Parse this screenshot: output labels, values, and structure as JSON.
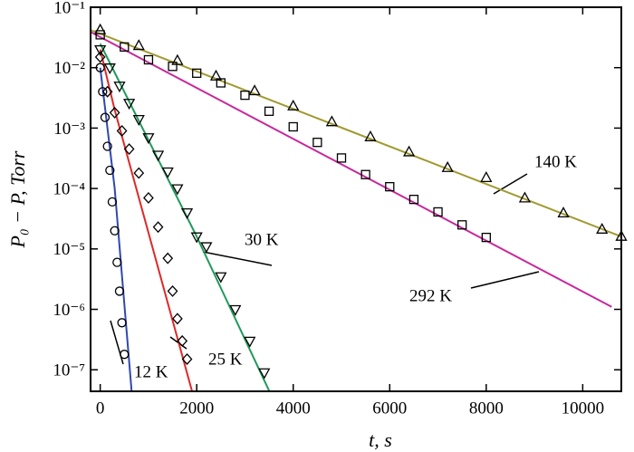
{
  "chart_data": {
    "type": "scatter",
    "xlabel": "t, s",
    "ylabel": "P₀ − P, Torr",
    "xlim": [
      -200,
      10800
    ],
    "xticks": [
      0,
      2000,
      4000,
      6000,
      8000,
      10000
    ],
    "ylim": [
      4.4e-08,
      0.1
    ],
    "log_y": true,
    "yticks": [
      {
        "value": 0.1,
        "label": "10⁻¹"
      },
      {
        "value": 0.01,
        "label": "10⁻²"
      },
      {
        "value": 0.001,
        "label": "10⁻³"
      },
      {
        "value": 0.0001,
        "label": "10⁻⁴"
      },
      {
        "value": 1e-05,
        "label": "10⁻⁵"
      },
      {
        "value": 1e-06,
        "label": "10⁻⁶"
      },
      {
        "value": 1e-07,
        "label": "10⁻⁷"
      }
    ],
    "annotations": [
      "140 K",
      "292 K",
      "30 K",
      "25 K",
      "12 K"
    ],
    "series": [
      {
        "marker": "triangle-up",
        "color": "#000000",
        "x": [
          0,
          800,
          1600,
          2400,
          3200,
          4000,
          4800,
          5600,
          6400,
          7200,
          8000,
          8800,
          9600,
          10400,
          10800
        ],
        "values": [
          0.042,
          0.023,
          0.013,
          0.0072,
          0.0041,
          0.0023,
          0.00126,
          0.00071,
          0.0004,
          0.00022,
          0.00015,
          6.9e-05,
          3.9e-05,
          2.1e-05,
          1.6e-05
        ]
      },
      {
        "marker": "square",
        "color": "#000000",
        "x": [
          0,
          500,
          1000,
          1500,
          2000,
          2500,
          3000,
          3500,
          4000,
          4500,
          5000,
          5500,
          6000,
          6500,
          7000,
          7500,
          8000
        ],
        "values": [
          0.035,
          0.022,
          0.0135,
          0.0105,
          0.0081,
          0.0056,
          0.0035,
          0.0019,
          0.00105,
          0.00058,
          0.00032,
          0.00017,
          0.000107,
          6.6e-05,
          4.1e-05,
          2.5e-05,
          1.55e-05
        ]
      },
      {
        "marker": "triangle-down",
        "color": "#000000",
        "x": [
          0,
          200,
          400,
          600,
          800,
          1000,
          1200,
          1400,
          1600,
          1800,
          2000,
          2200,
          2500,
          2800,
          3100,
          3400
        ],
        "values": [
          0.02,
          0.01,
          0.005,
          0.0026,
          0.0014,
          0.0007,
          0.00036,
          0.00019,
          0.0001,
          4e-05,
          1.6e-05,
          1.1e-05,
          3.5e-06,
          1e-06,
          3e-07,
          9e-08
        ]
      },
      {
        "marker": "diamond",
        "color": "#000000",
        "x": [
          0,
          150,
          300,
          450,
          600,
          800,
          1000,
          1200,
          1400,
          1500,
          1600,
          1700,
          1800
        ],
        "values": [
          0.015,
          0.004,
          0.0018,
          0.0009,
          0.00045,
          0.00018,
          7e-05,
          2.3e-05,
          7e-06,
          2e-06,
          7e-07,
          3e-07,
          1.5e-07
        ]
      },
      {
        "marker": "circle",
        "color": "#000000",
        "x": [
          0,
          50,
          100,
          150,
          200,
          250,
          300,
          350,
          400,
          450,
          500
        ],
        "values": [
          0.01,
          0.004,
          0.0015,
          0.0005,
          0.0002,
          6e-05,
          2e-05,
          6e-06,
          2e-06,
          6e-07,
          1.8e-07
        ]
      }
    ],
    "fits": [
      {
        "color": "#a09a30",
        "x": [
          -200,
          10800
        ],
        "values": [
          0.042,
          1.6e-05
        ]
      },
      {
        "color": "#c8289c",
        "x": [
          -200,
          10600
        ],
        "values": [
          0.039,
          1.1e-06
        ]
      },
      {
        "color": "#1e9a5a",
        "x": [
          0,
          2000,
          3500
        ],
        "values": [
          0.025,
          1.6e-05,
          4.5e-08
        ]
      },
      {
        "color": "#e02828",
        "x": [
          0,
          300,
          1900
        ],
        "values": [
          0.02,
          0.002,
          4.5e-08
        ]
      },
      {
        "color": "#3048b0",
        "x": [
          0,
          300,
          650
        ],
        "values": [
          0.01,
          0.0001,
          4.5e-08
        ]
      }
    ]
  }
}
